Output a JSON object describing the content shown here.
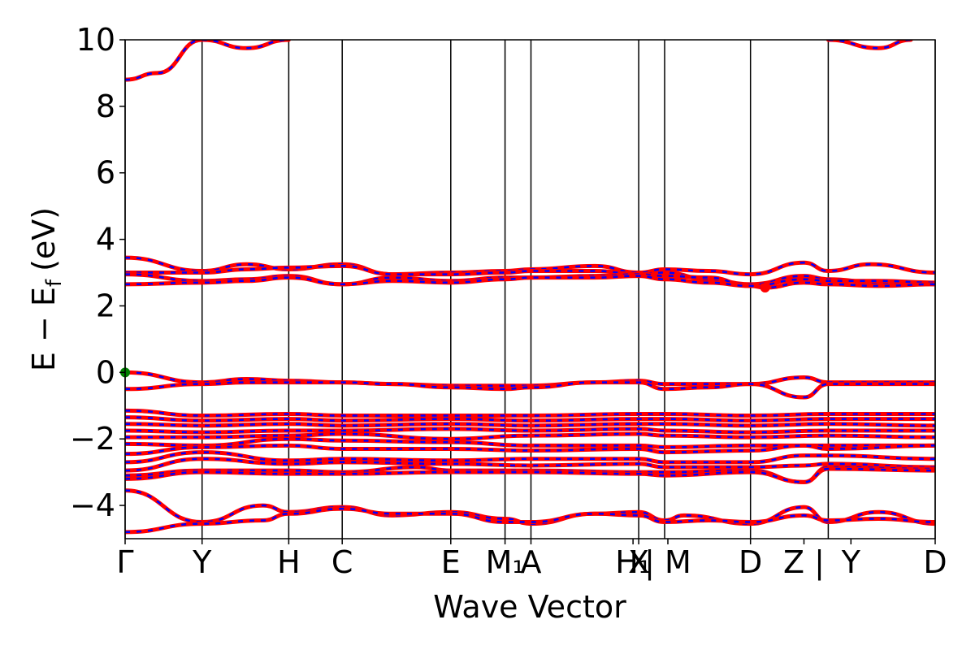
{
  "chart_data": {
    "type": "line",
    "title": "",
    "xlabel": "Wave Vector",
    "ylabel": "E − E",
    "ylabel_subscript": "f",
    "ylabel_unit": "(eV)",
    "ylim": [
      -5,
      10
    ],
    "yticks": [
      -4,
      -2,
      0,
      2,
      4,
      6,
      8,
      10
    ],
    "ytick_labels": [
      "−4",
      "−2",
      "0",
      "2",
      "4",
      "6",
      "8",
      "10"
    ],
    "xlim": [
      0,
      1
    ],
    "kpoints": [
      {
        "label": "Γ",
        "x": 0.0
      },
      {
        "label": "Y",
        "x": 0.095
      },
      {
        "label": "H",
        "x": 0.202
      },
      {
        "label": "C",
        "x": 0.268
      },
      {
        "label": "E",
        "x": 0.402
      },
      {
        "label": "M₁",
        "x": 0.469
      },
      {
        "label": "A",
        "x": 0.501
      },
      {
        "label": "H₁",
        "x": 0.627
      },
      {
        "label": "X",
        "x": 0.634
      },
      {
        "label": "| M",
        "x": 0.67
      },
      {
        "label": "D",
        "x": 0.772
      },
      {
        "label": "Z |",
        "x": 0.838
      },
      {
        "label": "Y",
        "x": 0.896
      },
      {
        "label": "D",
        "x": 1.0
      }
    ],
    "kpoint_lines": [
      0.0,
      0.095,
      0.202,
      0.268,
      0.402,
      0.469,
      0.501,
      0.634,
      0.666,
      0.772,
      0.868,
      1.0
    ],
    "series_styles": [
      {
        "color": "#ff0000",
        "linestyle": "solid"
      },
      {
        "color": "#0000ff",
        "linestyle": "dashed"
      }
    ],
    "series": [
      {
        "points": [
          [
            0.0,
            8.8
          ],
          [
            0.04,
            9.0
          ],
          [
            0.095,
            10.0
          ]
        ]
      },
      {
        "points": [
          [
            0.095,
            10.0
          ],
          [
            0.15,
            9.75
          ],
          [
            0.202,
            10.0
          ]
        ]
      },
      {
        "points": [
          [
            0.868,
            10.0
          ],
          [
            0.93,
            9.75
          ],
          [
            0.97,
            10.0
          ]
        ]
      },
      {
        "points": [
          [
            0.0,
            3.45
          ],
          [
            0.095,
            3.05
          ],
          [
            0.15,
            3.25
          ],
          [
            0.202,
            3.1
          ],
          [
            0.268,
            3.25
          ],
          [
            0.33,
            2.95
          ],
          [
            0.402,
            3.0
          ],
          [
            0.469,
            3.05
          ],
          [
            0.501,
            3.1
          ],
          [
            0.58,
            3.2
          ],
          [
            0.634,
            3.0
          ],
          [
            0.666,
            3.1
          ],
          [
            0.72,
            3.05
          ],
          [
            0.772,
            2.95
          ],
          [
            0.838,
            3.3
          ],
          [
            0.868,
            3.05
          ],
          [
            0.92,
            3.25
          ],
          [
            1.0,
            3.0
          ]
        ]
      },
      {
        "points": [
          [
            0.0,
            3.0
          ],
          [
            0.095,
            3.0
          ],
          [
            0.15,
            3.1
          ],
          [
            0.202,
            3.15
          ],
          [
            0.268,
            3.2
          ],
          [
            0.33,
            2.95
          ],
          [
            0.402,
            2.95
          ],
          [
            0.469,
            3.0
          ],
          [
            0.501,
            3.05
          ],
          [
            0.58,
            3.05
          ],
          [
            0.634,
            2.95
          ],
          [
            0.666,
            3.0
          ],
          [
            0.72,
            2.8
          ],
          [
            0.772,
            2.65
          ],
          [
            0.838,
            2.9
          ],
          [
            0.868,
            2.8
          ],
          [
            0.93,
            2.7
          ],
          [
            1.0,
            2.65
          ]
        ]
      },
      {
        "points": [
          [
            0.0,
            2.95
          ],
          [
            0.095,
            2.75
          ],
          [
            0.15,
            2.8
          ],
          [
            0.202,
            2.9
          ],
          [
            0.268,
            2.65
          ],
          [
            0.33,
            2.85
          ],
          [
            0.402,
            2.75
          ],
          [
            0.469,
            2.85
          ],
          [
            0.501,
            2.85
          ],
          [
            0.58,
            2.9
          ],
          [
            0.634,
            2.95
          ],
          [
            0.666,
            2.9
          ],
          [
            0.72,
            2.85
          ],
          [
            0.772,
            2.6
          ],
          [
            0.838,
            2.8
          ],
          [
            0.868,
            2.75
          ],
          [
            0.93,
            2.75
          ],
          [
            1.0,
            2.7
          ]
        ]
      },
      {
        "points": [
          [
            0.0,
            2.65
          ],
          [
            0.095,
            2.7
          ],
          [
            0.15,
            2.75
          ],
          [
            0.202,
            2.85
          ],
          [
            0.268,
            2.65
          ],
          [
            0.33,
            2.75
          ],
          [
            0.402,
            2.7
          ],
          [
            0.469,
            2.8
          ],
          [
            0.501,
            2.85
          ],
          [
            0.58,
            2.85
          ],
          [
            0.634,
            2.9
          ],
          [
            0.666,
            2.8
          ],
          [
            0.72,
            2.7
          ],
          [
            0.772,
            2.6
          ],
          [
            0.79,
            2.55
          ],
          [
            0.838,
            2.7
          ],
          [
            0.868,
            2.65
          ],
          [
            0.93,
            2.6
          ],
          [
            1.0,
            2.65
          ]
        ]
      },
      {
        "points": [
          [
            0.0,
            0.0
          ],
          [
            0.095,
            -0.3
          ],
          [
            0.15,
            -0.2
          ],
          [
            0.202,
            -0.25
          ],
          [
            0.268,
            -0.3
          ],
          [
            0.33,
            -0.35
          ],
          [
            0.402,
            -0.4
          ],
          [
            0.469,
            -0.4
          ],
          [
            0.501,
            -0.4
          ],
          [
            0.58,
            -0.3
          ],
          [
            0.634,
            -0.25
          ],
          [
            0.666,
            -0.35
          ],
          [
            0.72,
            -0.35
          ],
          [
            0.772,
            -0.35
          ],
          [
            0.838,
            -0.15
          ],
          [
            0.868,
            -0.3
          ],
          [
            1.0,
            -0.3
          ]
        ]
      },
      {
        "points": [
          [
            0.0,
            -0.5
          ],
          [
            0.095,
            -0.35
          ],
          [
            0.15,
            -0.3
          ],
          [
            0.202,
            -0.3
          ],
          [
            0.268,
            -0.3
          ],
          [
            0.33,
            -0.35
          ],
          [
            0.402,
            -0.45
          ],
          [
            0.469,
            -0.5
          ],
          [
            0.501,
            -0.45
          ],
          [
            0.58,
            -0.3
          ],
          [
            0.634,
            -0.3
          ],
          [
            0.666,
            -0.5
          ],
          [
            0.72,
            -0.45
          ],
          [
            0.772,
            -0.35
          ],
          [
            0.838,
            -0.75
          ],
          [
            0.868,
            -0.35
          ],
          [
            1.0,
            -0.35
          ]
        ]
      },
      {
        "points": [
          [
            0.0,
            -1.15
          ],
          [
            0.095,
            -1.3
          ],
          [
            0.202,
            -1.25
          ],
          [
            0.268,
            -1.3
          ],
          [
            0.402,
            -1.3
          ],
          [
            0.501,
            -1.3
          ],
          [
            0.634,
            -1.25
          ],
          [
            0.666,
            -1.25
          ],
          [
            0.772,
            -1.3
          ],
          [
            0.868,
            -1.25
          ],
          [
            1.0,
            -1.25
          ]
        ]
      },
      {
        "points": [
          [
            0.0,
            -1.35
          ],
          [
            0.095,
            -1.45
          ],
          [
            0.202,
            -1.4
          ],
          [
            0.268,
            -1.45
          ],
          [
            0.402,
            -1.4
          ],
          [
            0.501,
            -1.45
          ],
          [
            0.634,
            -1.4
          ],
          [
            0.666,
            -1.4
          ],
          [
            0.772,
            -1.45
          ],
          [
            0.868,
            -1.4
          ],
          [
            1.0,
            -1.4
          ]
        ]
      },
      {
        "points": [
          [
            0.0,
            -1.55
          ],
          [
            0.095,
            -1.6
          ],
          [
            0.202,
            -1.55
          ],
          [
            0.268,
            -1.6
          ],
          [
            0.402,
            -1.55
          ],
          [
            0.501,
            -1.6
          ],
          [
            0.634,
            -1.55
          ],
          [
            0.666,
            -1.55
          ],
          [
            0.772,
            -1.6
          ],
          [
            0.868,
            -1.55
          ],
          [
            1.0,
            -1.6
          ]
        ]
      },
      {
        "points": [
          [
            0.0,
            -1.75
          ],
          [
            0.095,
            -1.8
          ],
          [
            0.202,
            -1.75
          ],
          [
            0.268,
            -1.75
          ],
          [
            0.402,
            -1.7
          ],
          [
            0.501,
            -1.75
          ],
          [
            0.634,
            -1.7
          ],
          [
            0.666,
            -1.75
          ],
          [
            0.772,
            -1.8
          ],
          [
            0.868,
            -1.75
          ],
          [
            1.0,
            -1.75
          ]
        ]
      },
      {
        "points": [
          [
            0.0,
            -1.95
          ],
          [
            0.095,
            -1.95
          ],
          [
            0.202,
            -1.9
          ],
          [
            0.268,
            -1.85
          ],
          [
            0.402,
            -2.0
          ],
          [
            0.501,
            -1.9
          ],
          [
            0.634,
            -1.85
          ],
          [
            0.666,
            -1.9
          ],
          [
            0.772,
            -1.95
          ],
          [
            0.868,
            -1.9
          ],
          [
            1.0,
            -1.95
          ]
        ]
      },
      {
        "points": [
          [
            0.0,
            -2.15
          ],
          [
            0.095,
            -2.2
          ],
          [
            0.202,
            -2.0
          ],
          [
            0.268,
            -2.05
          ],
          [
            0.402,
            -2.1
          ],
          [
            0.501,
            -2.2
          ],
          [
            0.634,
            -2.2
          ],
          [
            0.666,
            -2.25
          ],
          [
            0.772,
            -2.2
          ],
          [
            0.868,
            -2.2
          ],
          [
            1.0,
            -2.2
          ]
        ]
      },
      {
        "points": [
          [
            0.0,
            -2.45
          ],
          [
            0.095,
            -2.25
          ],
          [
            0.202,
            -2.2
          ],
          [
            0.268,
            -2.3
          ],
          [
            0.402,
            -2.3
          ],
          [
            0.501,
            -2.35
          ],
          [
            0.634,
            -2.3
          ],
          [
            0.666,
            -2.4
          ],
          [
            0.772,
            -2.35
          ],
          [
            0.838,
            -2.2
          ],
          [
            0.868,
            -2.3
          ],
          [
            1.0,
            -2.2
          ]
        ]
      },
      {
        "points": [
          [
            0.0,
            -2.7
          ],
          [
            0.095,
            -2.4
          ],
          [
            0.202,
            -2.65
          ],
          [
            0.268,
            -2.6
          ],
          [
            0.402,
            -2.65
          ],
          [
            0.501,
            -2.6
          ],
          [
            0.634,
            -2.6
          ],
          [
            0.666,
            -2.7
          ],
          [
            0.772,
            -2.7
          ],
          [
            0.838,
            -2.5
          ],
          [
            0.868,
            -2.5
          ],
          [
            1.0,
            -2.6
          ]
        ]
      },
      {
        "points": [
          [
            0.0,
            -2.95
          ],
          [
            0.095,
            -2.6
          ],
          [
            0.202,
            -2.75
          ],
          [
            0.268,
            -2.7
          ],
          [
            0.402,
            -2.75
          ],
          [
            0.501,
            -2.8
          ],
          [
            0.634,
            -2.75
          ],
          [
            0.666,
            -2.85
          ],
          [
            0.772,
            -2.85
          ],
          [
            0.838,
            -2.8
          ],
          [
            0.868,
            -2.75
          ],
          [
            1.0,
            -2.85
          ]
        ]
      },
      {
        "points": [
          [
            0.0,
            -3.1
          ],
          [
            0.095,
            -2.95
          ],
          [
            0.202,
            -2.95
          ],
          [
            0.268,
            -3.0
          ],
          [
            0.36,
            -2.85
          ],
          [
            0.402,
            -2.95
          ],
          [
            0.501,
            -2.95
          ],
          [
            0.634,
            -3.0
          ],
          [
            0.666,
            -3.0
          ],
          [
            0.772,
            -2.95
          ],
          [
            0.838,
            -3.3
          ],
          [
            0.868,
            -2.85
          ],
          [
            1.0,
            -2.9
          ]
        ]
      },
      {
        "points": [
          [
            0.0,
            -3.2
          ],
          [
            0.095,
            -3.0
          ],
          [
            0.202,
            -3.05
          ],
          [
            0.268,
            -3.05
          ],
          [
            0.402,
            -3.0
          ],
          [
            0.501,
            -3.0
          ],
          [
            0.634,
            -3.05
          ],
          [
            0.666,
            -3.1
          ],
          [
            0.772,
            -3.0
          ],
          [
            0.838,
            -3.3
          ],
          [
            0.868,
            -2.9
          ],
          [
            1.0,
            -2.95
          ]
        ]
      },
      {
        "points": [
          [
            0.0,
            -3.55
          ],
          [
            0.095,
            -4.5
          ],
          [
            0.17,
            -4.0
          ],
          [
            0.202,
            -4.2
          ],
          [
            0.268,
            -4.05
          ],
          [
            0.33,
            -4.3
          ],
          [
            0.402,
            -4.2
          ],
          [
            0.469,
            -4.4
          ],
          [
            0.501,
            -4.55
          ],
          [
            0.58,
            -4.25
          ],
          [
            0.634,
            -4.2
          ],
          [
            0.666,
            -4.45
          ],
          [
            0.69,
            -4.3
          ],
          [
            0.772,
            -4.55
          ],
          [
            0.838,
            -4.05
          ],
          [
            0.868,
            -4.5
          ],
          [
            0.93,
            -4.2
          ],
          [
            1.0,
            -4.55
          ]
        ]
      },
      {
        "points": [
          [
            0.0,
            -4.8
          ],
          [
            0.095,
            -4.55
          ],
          [
            0.17,
            -4.45
          ],
          [
            0.202,
            -4.25
          ],
          [
            0.268,
            -4.1
          ],
          [
            0.33,
            -4.25
          ],
          [
            0.402,
            -4.25
          ],
          [
            0.469,
            -4.5
          ],
          [
            0.501,
            -4.5
          ],
          [
            0.58,
            -4.25
          ],
          [
            0.634,
            -4.3
          ],
          [
            0.666,
            -4.5
          ],
          [
            0.72,
            -4.45
          ],
          [
            0.772,
            -4.5
          ],
          [
            0.838,
            -4.3
          ],
          [
            0.868,
            -4.45
          ],
          [
            0.93,
            -4.4
          ],
          [
            1.0,
            -4.5
          ]
        ]
      }
    ],
    "markers": [
      {
        "x": 0.0,
        "y": 0.0,
        "color": "#008000"
      },
      {
        "x": 0.79,
        "y": 2.55,
        "color": "#ff0000"
      }
    ]
  }
}
